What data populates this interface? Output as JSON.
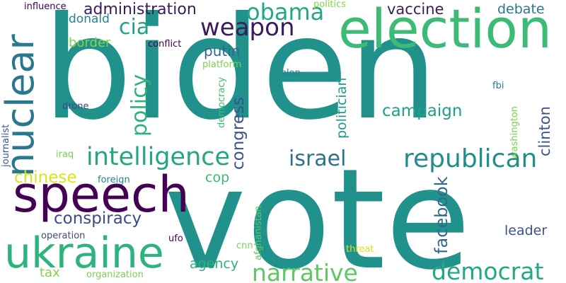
{
  "words": [
    {
      "text": "biden",
      "color": "#21918c",
      "rotated": false
    },
    {
      "text": "vote",
      "color": "#21918c",
      "rotated": false
    },
    {
      "text": "election",
      "color": "#3bbb75",
      "rotated": false
    },
    {
      "text": "speech",
      "color": "#440154",
      "rotated": false
    },
    {
      "text": "ukraine",
      "color": "#2eb37c",
      "rotated": false
    },
    {
      "text": "nuclear",
      "color": "#2a788e",
      "rotated": true
    },
    {
      "text": "intelligence",
      "color": "#25a584",
      "rotated": false
    },
    {
      "text": "republican",
      "color": "#228d8d",
      "rotated": false
    },
    {
      "text": "narrative",
      "color": "#5ec962",
      "rotated": false
    },
    {
      "text": "democrat",
      "color": "#22a884",
      "rotated": false
    },
    {
      "text": "weapon",
      "color": "#3b1c5a",
      "rotated": false
    },
    {
      "text": "obama",
      "color": "#22a884",
      "rotated": false
    },
    {
      "text": "israel",
      "color": "#2c728e",
      "rotated": false
    },
    {
      "text": "cia",
      "color": "#20a386",
      "rotated": false
    },
    {
      "text": "policy",
      "color": "#2db27d",
      "rotated": true
    },
    {
      "text": "conspiracy",
      "color": "#3e4a89",
      "rotated": false
    },
    {
      "text": "administration",
      "color": "#3b1c5a",
      "rotated": false
    },
    {
      "text": "facebook",
      "color": "#31688e",
      "rotated": true
    },
    {
      "text": "campaign",
      "color": "#1fa187",
      "rotated": false
    },
    {
      "text": "congress",
      "color": "#3b528b",
      "rotated": true
    },
    {
      "text": "clinton",
      "color": "#3b528b",
      "rotated": true
    },
    {
      "text": "chinese",
      "color": "#dde318",
      "rotated": false
    },
    {
      "text": "politician",
      "color": "#1f9a8a",
      "rotated": true
    },
    {
      "text": "vaccine",
      "color": "#3b1c5a",
      "rotated": false
    },
    {
      "text": "putin",
      "color": "#31688e",
      "rotated": false
    },
    {
      "text": "debate",
      "color": "#2a788e",
      "rotated": false
    },
    {
      "text": "agency",
      "color": "#2db27d",
      "rotated": false
    },
    {
      "text": "leader",
      "color": "#3b528b",
      "rotated": false
    },
    {
      "text": "cop",
      "color": "#3bbb75",
      "rotated": false
    },
    {
      "text": "border",
      "color": "#84d44b",
      "rotated": false
    },
    {
      "text": "donald",
      "color": "#26828e",
      "rotated": false
    },
    {
      "text": "tax",
      "color": "#84d44b",
      "rotated": false
    },
    {
      "text": "influence",
      "color": "#440154",
      "rotated": false
    },
    {
      "text": "politics",
      "color": "#84d44b",
      "rotated": false
    },
    {
      "text": "conflict",
      "color": "#440154",
      "rotated": false
    },
    {
      "text": "platform",
      "color": "#7ad151",
      "rotated": false
    },
    {
      "text": "democracy",
      "color": "#3bbb75",
      "rotated": true
    },
    {
      "text": "elon",
      "color": "#26828e",
      "rotated": false
    },
    {
      "text": "fbi",
      "color": "#2a788e",
      "rotated": false
    },
    {
      "text": "drone",
      "color": "#3e4a89",
      "rotated": false
    },
    {
      "text": "washington",
      "color": "#7ad151",
      "rotated": true
    },
    {
      "text": "journalist",
      "color": "#3b528b",
      "rotated": true
    },
    {
      "text": "iraq",
      "color": "#7ad151",
      "rotated": false
    },
    {
      "text": "foreign",
      "color": "#26828e",
      "rotated": false
    },
    {
      "text": "afghanistan",
      "color": "#5ec962",
      "rotated": true
    },
    {
      "text": "operation",
      "color": "#3e4a89",
      "rotated": false
    },
    {
      "text": "ufo",
      "color": "#440154",
      "rotated": false
    },
    {
      "text": "cnn",
      "color": "#7ad151",
      "rotated": false
    },
    {
      "text": "threat",
      "color": "#dde318",
      "rotated": false
    },
    {
      "text": "organization",
      "color": "#7ad151",
      "rotated": false
    }
  ]
}
